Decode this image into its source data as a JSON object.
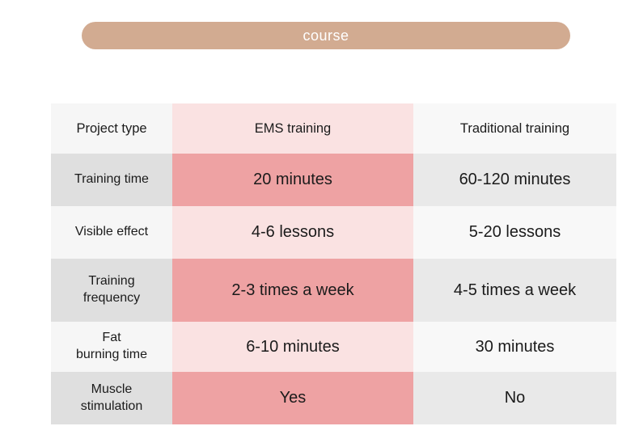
{
  "header_pill": {
    "label": "course",
    "background_color": "#d2ab91",
    "text_color": "#ffffff"
  },
  "table": {
    "columns": [
      "Project type",
      "EMS training",
      "Traditional training"
    ],
    "rows": [
      {
        "label": "Training time",
        "ems": "20 minutes",
        "traditional": "60-120 minutes"
      },
      {
        "label": "Visible effect",
        "ems": "4-6 lessons",
        "traditional": "5-20 lessons"
      },
      {
        "label": "Training\nfrequency",
        "ems": "2-3 times a week",
        "traditional": "4-5 times a week"
      },
      {
        "label": "Fat\nburning time",
        "ems": "6-10 minutes",
        "traditional": "30 minutes"
      },
      {
        "label": "Muscle\nstimulation",
        "ems": "Yes",
        "traditional": "No"
      }
    ]
  },
  "chart_data": {
    "type": "table",
    "title": "course",
    "columns": [
      "Project type",
      "EMS training",
      "Traditional training"
    ],
    "rows": [
      [
        "Training time",
        "20 minutes",
        "60-120 minutes"
      ],
      [
        "Visible effect",
        "4-6 lessons",
        "5-20 lessons"
      ],
      [
        "Training frequency",
        "2-3 times a week",
        "4-5 times a week"
      ],
      [
        "Fat burning time",
        "6-10 minutes",
        "30 minutes"
      ],
      [
        "Muscle stimulation",
        "Yes",
        "No"
      ]
    ],
    "layout_hints": {
      "row_striping": "alternating light/dark starting light at header",
      "highlight_column": "EMS training",
      "colors": {
        "label_col_light": "#f6f6f6",
        "label_col_dark": "#dfdfdf",
        "ems_col_light": "#fae2e2",
        "ems_col_dark": "#eea2a3",
        "traditional_col_light": "#f8f8f8",
        "traditional_col_dark": "#e9e9e9",
        "text": "#1b1b1b",
        "pill": "#d2ab91"
      }
    }
  }
}
